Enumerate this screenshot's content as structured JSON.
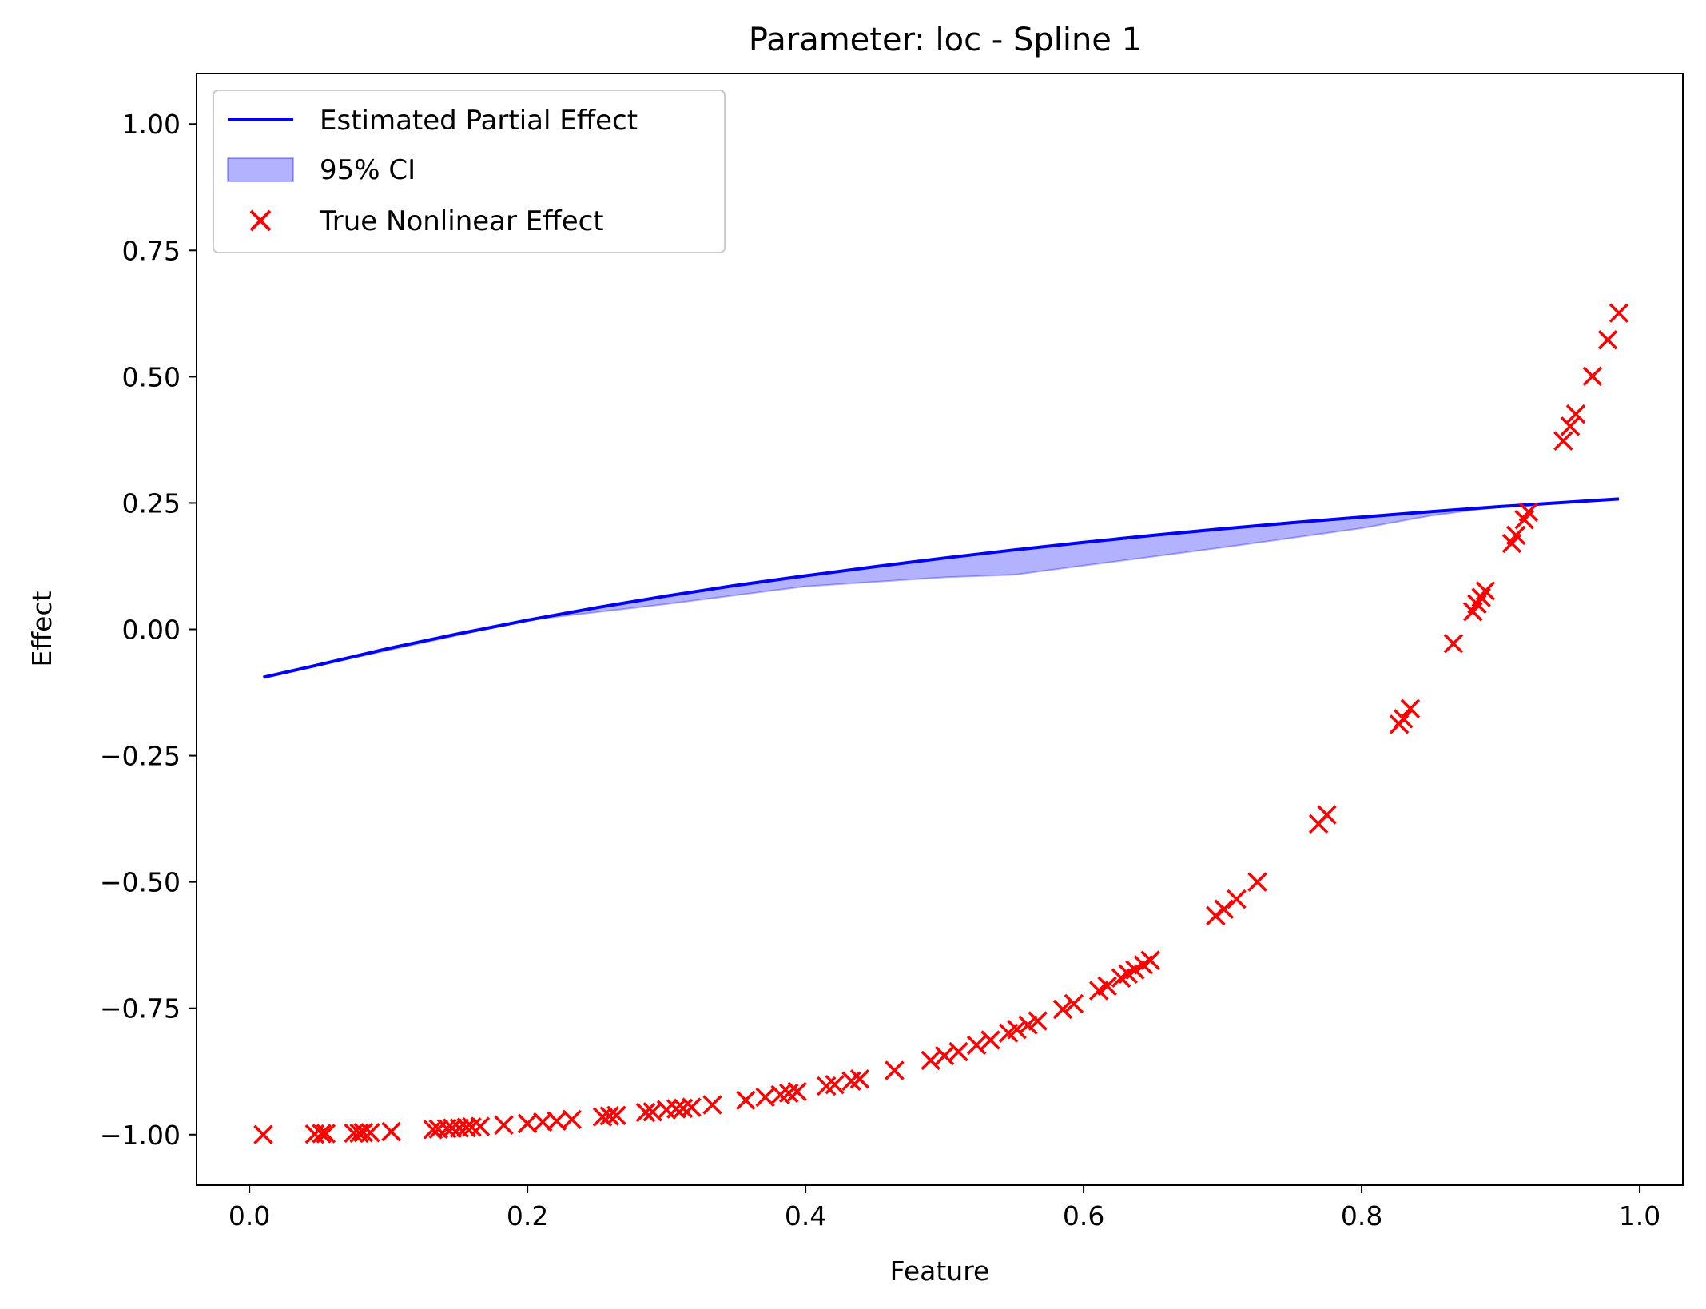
{
  "chart_data": {
    "type": "line",
    "title": "Parameter: loc - Spline 1",
    "xlabel": "Feature",
    "ylabel": "Effect",
    "xlim": [
      -0.038,
      1.031
    ],
    "ylim": [
      -1.1,
      1.1
    ],
    "xticks": [
      0.0,
      0.2,
      0.4,
      0.6,
      0.8,
      1.0
    ],
    "xtick_labels": [
      "0.0",
      "0.2",
      "0.4",
      "0.6",
      "0.8",
      "1.0"
    ],
    "yticks": [
      1.0,
      0.75,
      0.5,
      0.25,
      0.0,
      -0.25,
      -0.5,
      -0.75,
      -1.0
    ],
    "ytick_labels": [
      "1.00",
      "0.75",
      "0.50",
      "0.25",
      "0.00",
      "−0.25",
      "−0.50",
      "−0.75",
      "−1.00"
    ],
    "grid": false,
    "legend_position": "top-left",
    "colors": {
      "line": "#0000ff",
      "band": "#0000ff",
      "points": "#ff0000"
    },
    "series": [
      {
        "name": "Estimated Partial Effect",
        "kind": "line",
        "points": [
          [
            0.01,
            -0.095
          ],
          [
            0.05,
            -0.07
          ],
          [
            0.1,
            -0.038
          ],
          [
            0.15,
            -0.009
          ],
          [
            0.2,
            0.018
          ],
          [
            0.25,
            0.043
          ],
          [
            0.3,
            0.066
          ],
          [
            0.35,
            0.087
          ],
          [
            0.4,
            0.106
          ],
          [
            0.45,
            0.124
          ],
          [
            0.5,
            0.141
          ],
          [
            0.55,
            0.157
          ],
          [
            0.6,
            0.172
          ],
          [
            0.65,
            0.186
          ],
          [
            0.7,
            0.199
          ],
          [
            0.75,
            0.211
          ],
          [
            0.8,
            0.222
          ],
          [
            0.85,
            0.233
          ],
          [
            0.9,
            0.243
          ],
          [
            0.95,
            0.252
          ],
          [
            0.985,
            0.258
          ]
        ]
      },
      {
        "name": "95% CI",
        "kind": "band",
        "upper": [
          [
            0.01,
            -0.095
          ],
          [
            0.2,
            0.018
          ],
          [
            0.3,
            0.066
          ],
          [
            0.4,
            0.106
          ],
          [
            0.5,
            0.141
          ],
          [
            0.55,
            0.157
          ],
          [
            0.6,
            0.172
          ],
          [
            0.7,
            0.199
          ],
          [
            0.8,
            0.222
          ],
          [
            0.85,
            0.233
          ],
          [
            0.9,
            0.243
          ],
          [
            0.985,
            0.258
          ]
        ],
        "lower": [
          [
            0.01,
            -0.095
          ],
          [
            0.2,
            0.018
          ],
          [
            0.3,
            0.05
          ],
          [
            0.4,
            0.085
          ],
          [
            0.5,
            0.103
          ],
          [
            0.55,
            0.108
          ],
          [
            0.6,
            0.126
          ],
          [
            0.7,
            0.162
          ],
          [
            0.8,
            0.2
          ],
          [
            0.85,
            0.225
          ],
          [
            0.9,
            0.243
          ],
          [
            0.985,
            0.258
          ]
        ]
      },
      {
        "name": "True Nonlinear Effect",
        "kind": "scatter",
        "points": [
          [
            0.01,
            -1.0
          ],
          [
            0.047,
            -0.999
          ],
          [
            0.052,
            -0.998
          ],
          [
            0.055,
            -0.998
          ],
          [
            0.075,
            -0.997
          ],
          [
            0.079,
            -0.997
          ],
          [
            0.082,
            -0.996
          ],
          [
            0.087,
            -0.996
          ],
          [
            0.102,
            -0.994
          ],
          [
            0.132,
            -0.99
          ],
          [
            0.136,
            -0.989
          ],
          [
            0.142,
            -0.988
          ],
          [
            0.146,
            -0.987
          ],
          [
            0.151,
            -0.987
          ],
          [
            0.156,
            -0.986
          ],
          [
            0.16,
            -0.985
          ],
          [
            0.166,
            -0.984
          ],
          [
            0.183,
            -0.981
          ],
          [
            0.2,
            -0.978
          ],
          [
            0.211,
            -0.975
          ],
          [
            0.221,
            -0.973
          ],
          [
            0.232,
            -0.97
          ],
          [
            0.254,
            -0.965
          ],
          [
            0.259,
            -0.963
          ],
          [
            0.264,
            -0.962
          ],
          [
            0.285,
            -0.956
          ],
          [
            0.29,
            -0.955
          ],
          [
            0.3,
            -0.951
          ],
          [
            0.307,
            -0.949
          ],
          [
            0.312,
            -0.948
          ],
          [
            0.318,
            -0.946
          ],
          [
            0.333,
            -0.941
          ],
          [
            0.357,
            -0.932
          ],
          [
            0.371,
            -0.926
          ],
          [
            0.382,
            -0.921
          ],
          [
            0.388,
            -0.918
          ],
          [
            0.394,
            -0.915
          ],
          [
            0.415,
            -0.904
          ],
          [
            0.421,
            -0.901
          ],
          [
            0.433,
            -0.894
          ],
          [
            0.439,
            -0.89
          ],
          [
            0.464,
            -0.873
          ],
          [
            0.49,
            -0.853
          ],
          [
            0.5,
            -0.844
          ],
          [
            0.51,
            -0.836
          ],
          [
            0.523,
            -0.823
          ],
          [
            0.533,
            -0.813
          ],
          [
            0.546,
            -0.799
          ],
          [
            0.552,
            -0.792
          ],
          [
            0.56,
            -0.783
          ],
          [
            0.567,
            -0.775
          ],
          [
            0.585,
            -0.752
          ],
          [
            0.593,
            -0.741
          ],
          [
            0.611,
            -0.715
          ],
          [
            0.617,
            -0.706
          ],
          [
            0.627,
            -0.69
          ],
          [
            0.632,
            -0.682
          ],
          [
            0.637,
            -0.674
          ],
          [
            0.643,
            -0.664
          ],
          [
            0.648,
            -0.655
          ],
          [
            0.695,
            -0.567
          ],
          [
            0.701,
            -0.554
          ],
          [
            0.71,
            -0.534
          ],
          [
            0.725,
            -0.5
          ],
          [
            0.769,
            -0.385
          ],
          [
            0.775,
            -0.367
          ],
          [
            0.827,
            -0.188
          ],
          [
            0.83,
            -0.177
          ],
          [
            0.835,
            -0.157
          ],
          [
            0.866,
            -0.028
          ],
          [
            0.88,
            0.035
          ],
          [
            0.883,
            0.05
          ],
          [
            0.886,
            0.063
          ],
          [
            0.889,
            0.076
          ],
          [
            0.908,
            0.17
          ],
          [
            0.911,
            0.186
          ],
          [
            0.917,
            0.217
          ],
          [
            0.92,
            0.232
          ],
          [
            0.945,
            0.373
          ],
          [
            0.95,
            0.402
          ],
          [
            0.954,
            0.426
          ],
          [
            0.966,
            0.501
          ],
          [
            0.977,
            0.573
          ],
          [
            0.985,
            0.626
          ]
        ]
      }
    ]
  }
}
